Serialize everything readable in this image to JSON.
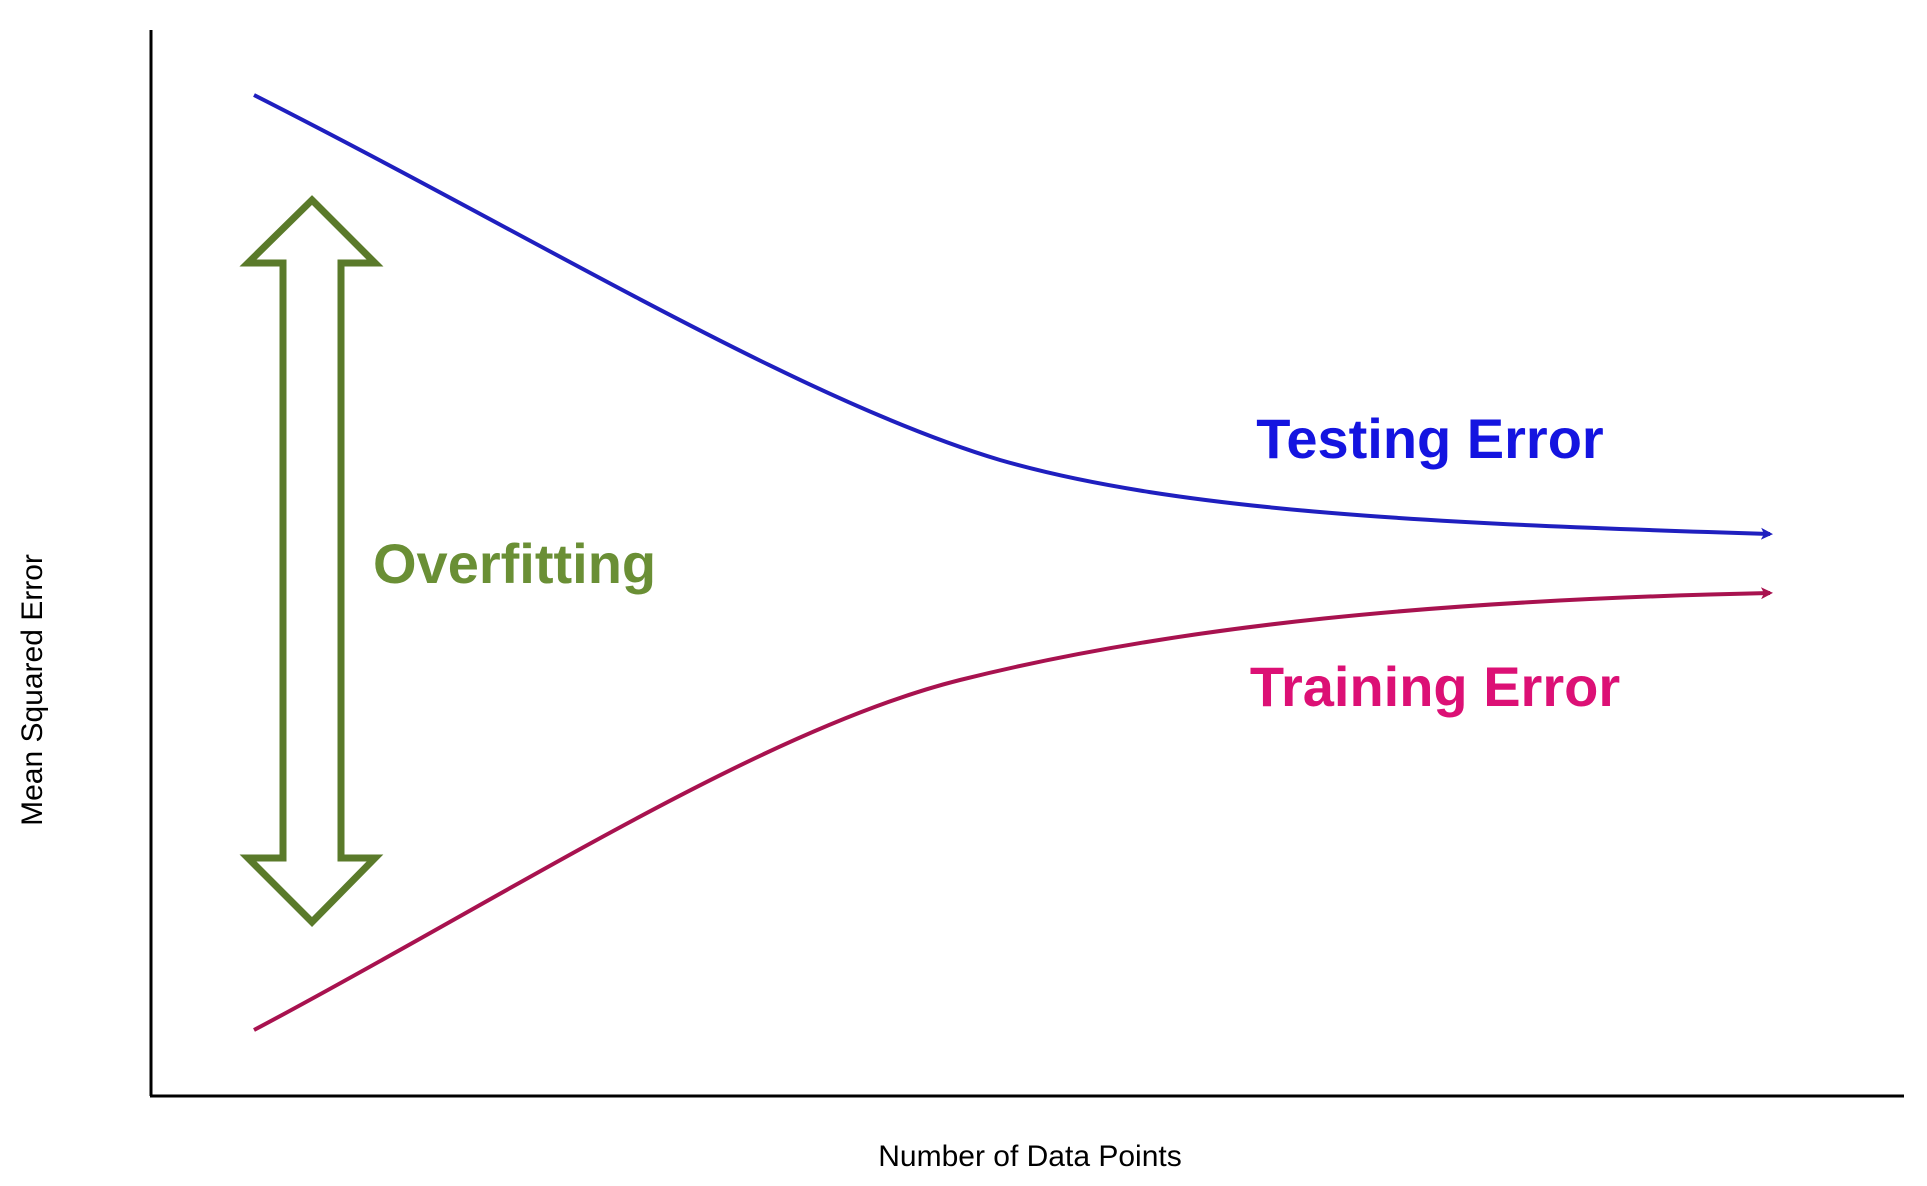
{
  "axes": {
    "x_label": "Number of Data Points",
    "y_label": "Mean Squared Error"
  },
  "curves": {
    "testing": {
      "label": "Testing Error",
      "line_color": "#1f1fbf",
      "label_color": "#1414e0"
    },
    "training": {
      "label": "Training Error",
      "line_color": "#a8124f",
      "label_color": "#dc1075"
    }
  },
  "annotation": {
    "label": "Overfitting",
    "color": "#5a7a2a",
    "label_color": "#6a8f35"
  },
  "colors": {
    "axis": "#000000",
    "background": "#ffffff"
  }
}
